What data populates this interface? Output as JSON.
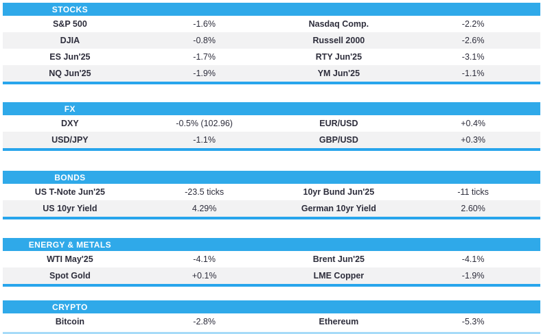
{
  "colors": {
    "header_blue": "#2FA9E9",
    "divider_blue": "#28A5EC",
    "row_stripe": "#F2F2F3",
    "text_dark": "#2D2D3B",
    "header_text": "#FFFFFF",
    "bottom_edge_blue": "#A6DBF8"
  },
  "sections": [
    {
      "title": "STOCKS",
      "rows": [
        {
          "c0": "S&P 500",
          "c1": "-1.6%",
          "c2": "Nasdaq Comp.",
          "c3": "-2.2%"
        },
        {
          "c0": "DJIA",
          "c1": "-0.8%",
          "c2": "Russell 2000",
          "c3": "-2.6%"
        },
        {
          "c0": "ES Jun'25",
          "c1": "-1.7%",
          "c2": "RTY Jun'25",
          "c3": "-3.1%"
        },
        {
          "c0": "NQ Jun'25",
          "c1": "-1.9%",
          "c2": "YM Jun'25",
          "c3": "-1.1%"
        }
      ]
    },
    {
      "title": "FX",
      "rows": [
        {
          "c0": "DXY",
          "c1": "-0.5% (102.96)",
          "c2": "EUR/USD",
          "c3": "+0.4%"
        },
        {
          "c0": "USD/JPY",
          "c1": "-1.1%",
          "c2": "GBP/USD",
          "c3": "+0.3%"
        }
      ]
    },
    {
      "title": "BONDS",
      "rows": [
        {
          "c0": "US T-Note Jun'25",
          "c1": "-23.5 ticks",
          "c2": "10yr Bund Jun'25",
          "c3": "-11 ticks"
        },
        {
          "c0": "US 10yr Yield",
          "c1": "4.29%",
          "c2": "German 10yr Yield",
          "c3": "2.60%"
        }
      ]
    },
    {
      "title": "ENERGY & METALS",
      "rows": [
        {
          "c0": "WTI May'25",
          "c1": "-4.1%",
          "c2": "Brent Jun'25",
          "c3": "-4.1%"
        },
        {
          "c0": "Spot Gold",
          "c1": "+0.1%",
          "c2": "LME Copper",
          "c3": "-1.9%"
        }
      ]
    },
    {
      "title": "CRYPTO",
      "rows": [
        {
          "c0": "Bitcoin",
          "c1": "-2.8%",
          "c2": "Ethereum",
          "c3": "-5.3%"
        }
      ]
    }
  ]
}
